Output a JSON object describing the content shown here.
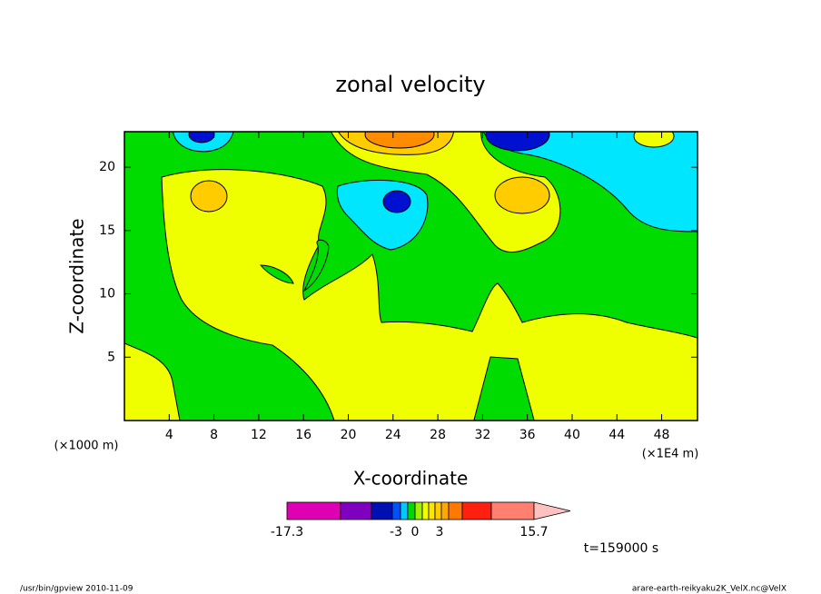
{
  "chart_data": {
    "type": "contour",
    "title": "zonal velocity",
    "x_label": "X-coordinate",
    "y_label": "Z-coordinate",
    "x_unit": "(×1E4 m)",
    "y_unit": "(×1000 m)",
    "xlim": [
      0,
      51.2
    ],
    "ylim": [
      0,
      22.8
    ],
    "xticks": [
      4,
      8,
      12,
      16,
      20,
      24,
      28,
      32,
      36,
      40,
      44,
      48
    ],
    "yticks": [
      5,
      10,
      15,
      20
    ],
    "colorbar": {
      "colors": [
        "#e000b4",
        "#8000c0",
        "#0010b0",
        "#0050ff",
        "#00c8ff",
        "#00d800",
        "#a0f000",
        "#f0ff00",
        "#ffe400",
        "#ffcc00",
        "#ffa800",
        "#ff7800",
        "#ff2010",
        "#ff8070",
        "#ffc0c0"
      ],
      "ticks": [
        -17.3,
        -3,
        0,
        3,
        15.7
      ]
    },
    "annotation": "t=159000 s",
    "footer_left": "/usr/bin/gpview   2010-11-09",
    "footer_right": "arare-earth-reikyaku2K_VelX.nc@VelX"
  }
}
